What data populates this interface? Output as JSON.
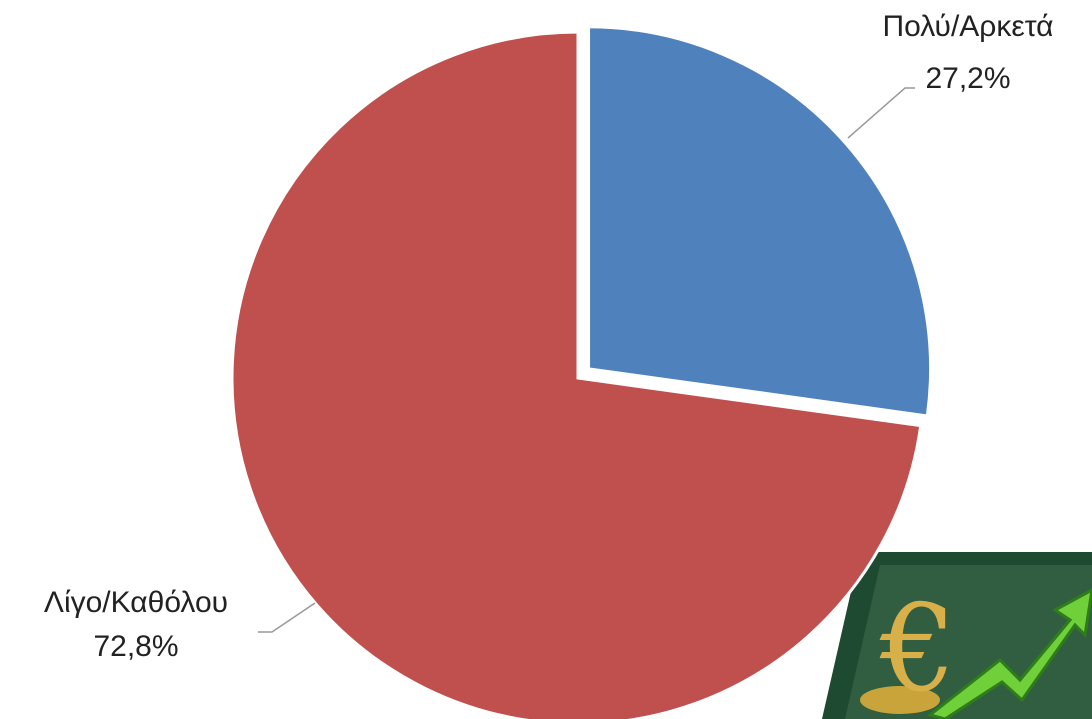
{
  "chart_data": {
    "type": "pie",
    "categories": [
      "Πολύ/Αρκετά",
      "Λίγο/Καθόλου"
    ],
    "values": [
      27.2,
      72.8
    ],
    "value_labels": [
      "27,2%",
      "72,8%"
    ],
    "colors": [
      "#4f81bd",
      "#c0504d"
    ],
    "explode": [
      true,
      false
    ]
  }
}
